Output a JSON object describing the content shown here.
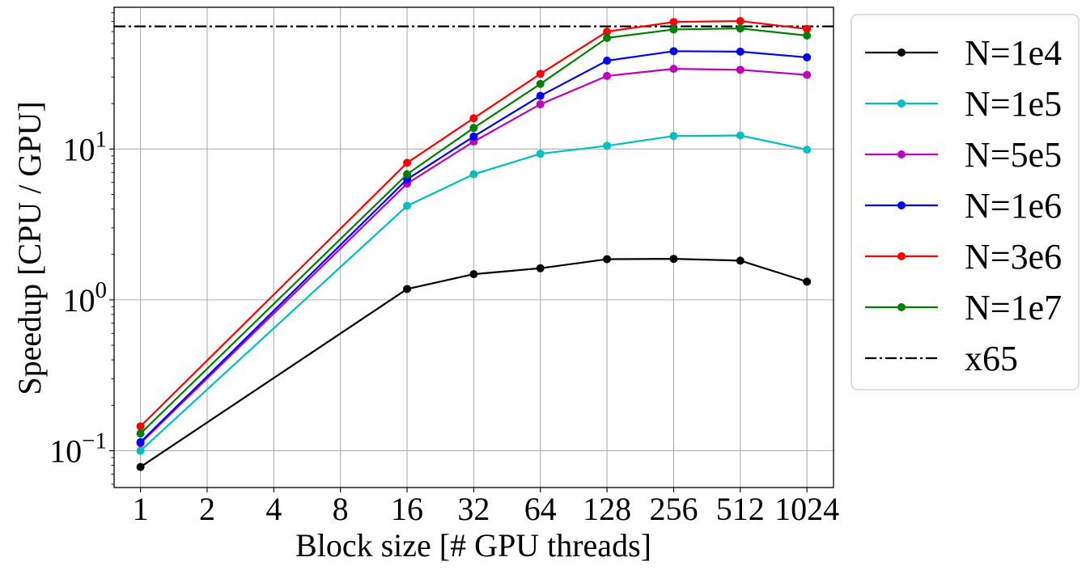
{
  "chart_data": {
    "type": "line",
    "x_scale": "log2",
    "y_scale": "log10",
    "x": [
      1,
      2,
      4,
      8,
      16,
      32,
      64,
      128,
      256,
      512,
      1024
    ],
    "x_tick_labels": [
      "1",
      "2",
      "4",
      "8",
      "16",
      "32",
      "64",
      "128",
      "256",
      "512",
      "1024"
    ],
    "y_ticks": [
      {
        "value": 0.1,
        "base": "10",
        "exp": "−1"
      },
      {
        "value": 1,
        "base": "10",
        "exp": "0"
      },
      {
        "value": 10,
        "base": "10",
        "exp": "1"
      }
    ],
    "xlabel": "Block size [# GPU threads]",
    "ylabel": "Speedup [CPU / GPU]",
    "xlim": [
      0.76,
      1350
    ],
    "ylim": [
      0.057,
      87
    ],
    "grid": true,
    "legend_placement": "outside-right",
    "series": [
      {
        "name": "N=1e4",
        "color": "#000000",
        "points": [
          [
            1,
            0.078
          ],
          [
            16,
            1.18
          ],
          [
            32,
            1.48
          ],
          [
            64,
            1.62
          ],
          [
            128,
            1.86
          ],
          [
            256,
            1.87
          ],
          [
            512,
            1.82
          ],
          [
            1024,
            1.32
          ]
        ]
      },
      {
        "name": "N=1e5",
        "color": "#00bfbf",
        "points": [
          [
            1,
            0.1
          ],
          [
            16,
            4.2
          ],
          [
            32,
            6.8
          ],
          [
            64,
            9.3
          ],
          [
            128,
            10.5
          ],
          [
            256,
            12.2
          ],
          [
            512,
            12.3
          ],
          [
            1024,
            9.9
          ]
        ]
      },
      {
        "name": "N=5e5",
        "color": "#bf00bf",
        "points": [
          [
            1,
            0.112
          ],
          [
            16,
            5.9
          ],
          [
            32,
            11.2
          ],
          [
            64,
            19.8
          ],
          [
            128,
            30.5
          ],
          [
            256,
            34
          ],
          [
            512,
            33.5
          ],
          [
            1024,
            31
          ]
        ]
      },
      {
        "name": "N=1e6",
        "color": "#0000ff",
        "points": [
          [
            1,
            0.114
          ],
          [
            16,
            6.3
          ],
          [
            32,
            12.1
          ],
          [
            64,
            22.5
          ],
          [
            128,
            38.5
          ],
          [
            256,
            44.5
          ],
          [
            512,
            44.2
          ],
          [
            1024,
            40.5
          ]
        ]
      },
      {
        "name": "N=3e6",
        "color": "#ff0000",
        "points": [
          [
            1,
            0.145
          ],
          [
            16,
            8.1
          ],
          [
            32,
            16
          ],
          [
            64,
            31.5
          ],
          [
            128,
            60
          ],
          [
            256,
            69.5
          ],
          [
            512,
            70.5
          ],
          [
            1024,
            62.5
          ]
        ]
      },
      {
        "name": "N=1e7",
        "color": "#008000",
        "points": [
          [
            1,
            0.13
          ],
          [
            16,
            6.8
          ],
          [
            32,
            13.8
          ],
          [
            64,
            27
          ],
          [
            128,
            54.5
          ],
          [
            256,
            62
          ],
          [
            512,
            63
          ],
          [
            1024,
            56.5
          ]
        ]
      }
    ],
    "reference_line": {
      "name": "x65",
      "value": 65,
      "color": "#000000",
      "style": "dash-dot"
    }
  }
}
